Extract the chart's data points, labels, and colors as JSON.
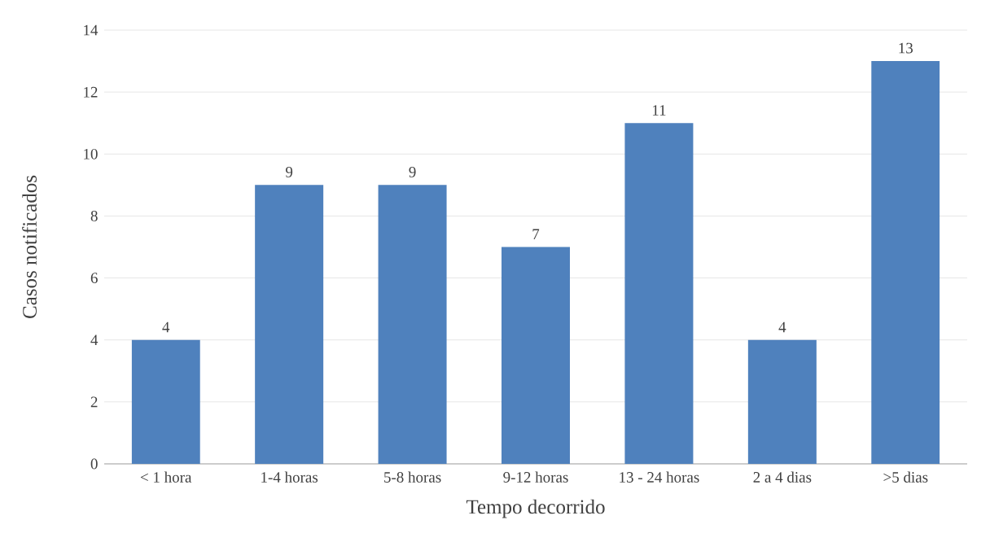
{
  "chart_data": {
    "type": "bar",
    "xlabel": "Tempo decorrido",
    "ylabel": "Casos notificados",
    "categories": [
      "< 1 hora",
      "1-4 horas",
      "5-8 horas",
      "9-12 horas",
      "13 - 24 horas",
      "2 a 4 dias",
      ">5 dias"
    ],
    "values": [
      4,
      9,
      9,
      7,
      11,
      4,
      13
    ],
    "color": "#4f81bd",
    "ylim": [
      0,
      14
    ],
    "yticks": [
      0,
      2,
      4,
      6,
      8,
      10,
      12,
      14
    ],
    "grid": "y",
    "data_labels": true
  }
}
